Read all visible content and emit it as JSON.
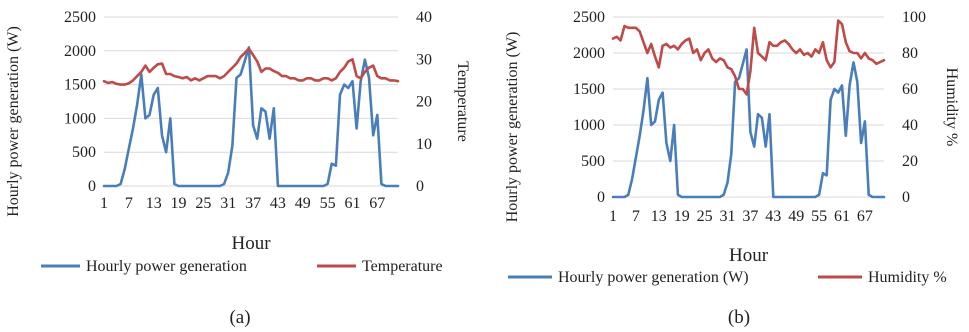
{
  "chart_data": [
    {
      "type": "line",
      "panel_label": "(a)",
      "xlabel": "Hour",
      "ylabel": "Hourly power generation  (W)",
      "y2label": "Temperature",
      "ylim": [
        0,
        2500
      ],
      "y2lim": [
        0,
        40
      ],
      "yticks": [
        "0",
        "500",
        "1000",
        "1500",
        "2000",
        "2500"
      ],
      "y2ticks": [
        "0",
        "10",
        "20",
        "30",
        "40"
      ],
      "xlim": [
        1,
        72
      ],
      "xticks": [
        "1",
        "7",
        "13",
        "19",
        "25",
        "31",
        "37",
        "43",
        "49",
        "55",
        "61",
        "67"
      ],
      "grid": true,
      "legend_position": "bottom",
      "series": [
        {
          "name": "Hourly power generation",
          "axis": "left",
          "color": "#4a7ebb",
          "x": [
            1,
            2,
            3,
            4,
            5,
            6,
            7,
            8,
            9,
            10,
            11,
            12,
            13,
            14,
            15,
            16,
            17,
            18,
            19,
            20,
            21,
            22,
            23,
            24,
            25,
            26,
            27,
            28,
            29,
            30,
            31,
            32,
            33,
            34,
            35,
            36,
            37,
            38,
            39,
            40,
            41,
            42,
            43,
            44,
            45,
            46,
            47,
            48,
            49,
            50,
            51,
            52,
            53,
            54,
            55,
            56,
            57,
            58,
            59,
            60,
            61,
            62,
            63,
            64,
            65,
            66,
            67,
            68,
            69,
            70,
            71,
            72
          ],
          "values": [
            0,
            0,
            0,
            0,
            30,
            250,
            550,
            850,
            1200,
            1650,
            1000,
            1050,
            1350,
            1450,
            750,
            500,
            1000,
            30,
            0,
            0,
            0,
            0,
            0,
            0,
            0,
            0,
            0,
            0,
            0,
            30,
            200,
            600,
            1600,
            1650,
            1850,
            2050,
            900,
            700,
            1150,
            1100,
            700,
            1150,
            0,
            0,
            0,
            0,
            0,
            0,
            0,
            0,
            0,
            0,
            0,
            0,
            30,
            330,
            300,
            1350,
            1500,
            1450,
            1550,
            850,
            1550,
            1870,
            1600,
            750,
            1050,
            30,
            0,
            0,
            0,
            0
          ]
        },
        {
          "name": "Temperature",
          "axis": "right",
          "color": "#be4b48",
          "x": [
            1,
            2,
            3,
            4,
            5,
            6,
            7,
            8,
            9,
            10,
            11,
            12,
            13,
            14,
            15,
            16,
            17,
            18,
            19,
            20,
            21,
            22,
            23,
            24,
            25,
            26,
            27,
            28,
            29,
            30,
            31,
            32,
            33,
            34,
            35,
            36,
            37,
            38,
            39,
            40,
            41,
            42,
            43,
            44,
            45,
            46,
            47,
            48,
            49,
            50,
            51,
            52,
            53,
            54,
            55,
            56,
            57,
            58,
            59,
            60,
            61,
            62,
            63,
            64,
            65,
            66,
            67,
            68,
            69,
            70,
            71,
            72
          ],
          "values": [
            24.8,
            24.4,
            24.6,
            24.2,
            24.0,
            24.0,
            24.3,
            25.0,
            26.0,
            27.0,
            28.5,
            27.0,
            28.0,
            28.8,
            29.0,
            26.5,
            26.5,
            26.0,
            25.8,
            25.5,
            25.8,
            25.0,
            25.5,
            25.0,
            25.5,
            26.0,
            26.0,
            26.0,
            25.5,
            26.0,
            27.0,
            28.0,
            29.0,
            30.5,
            31.5,
            32.5,
            31.0,
            29.5,
            27.0,
            27.8,
            27.8,
            27.2,
            26.8,
            26.0,
            26.0,
            25.5,
            25.5,
            25.0,
            25.0,
            25.5,
            25.5,
            25.0,
            25.0,
            25.5,
            25.5,
            25.0,
            25.5,
            27.0,
            28.0,
            29.5,
            30.0,
            26.0,
            25.5,
            27.0,
            28.0,
            28.5,
            26.0,
            25.5,
            25.5,
            25.0,
            25.0,
            24.8
          ]
        }
      ]
    },
    {
      "type": "line",
      "panel_label": "(b)",
      "xlabel": "Hour",
      "ylabel": "Hourly power generation  (W)",
      "y2label": "Humidity   %",
      "ylim": [
        0,
        2500
      ],
      "y2lim": [
        0,
        100
      ],
      "yticks": [
        "0",
        "500",
        "1000",
        "1500",
        "2000",
        "2500"
      ],
      "y2ticks": [
        "0",
        "20",
        "40",
        "60",
        "80",
        "100"
      ],
      "xlim": [
        1,
        72
      ],
      "xticks": [
        "1",
        "7",
        "13",
        "19",
        "25",
        "31",
        "37",
        "43",
        "49",
        "55",
        "61",
        "67"
      ],
      "grid": true,
      "legend_position": "bottom",
      "series": [
        {
          "name": "Hourly power generation (W)",
          "axis": "left",
          "color": "#4a7ebb",
          "x": [
            1,
            2,
            3,
            4,
            5,
            6,
            7,
            8,
            9,
            10,
            11,
            12,
            13,
            14,
            15,
            16,
            17,
            18,
            19,
            20,
            21,
            22,
            23,
            24,
            25,
            26,
            27,
            28,
            29,
            30,
            31,
            32,
            33,
            34,
            35,
            36,
            37,
            38,
            39,
            40,
            41,
            42,
            43,
            44,
            45,
            46,
            47,
            48,
            49,
            50,
            51,
            52,
            53,
            54,
            55,
            56,
            57,
            58,
            59,
            60,
            61,
            62,
            63,
            64,
            65,
            66,
            67,
            68,
            69,
            70,
            71,
            72
          ],
          "values": [
            0,
            0,
            0,
            0,
            30,
            250,
            550,
            850,
            1200,
            1650,
            1000,
            1050,
            1350,
            1450,
            750,
            500,
            1000,
            30,
            0,
            0,
            0,
            0,
            0,
            0,
            0,
            0,
            0,
            0,
            0,
            30,
            200,
            600,
            1600,
            1650,
            1850,
            2050,
            900,
            700,
            1150,
            1100,
            700,
            1150,
            0,
            0,
            0,
            0,
            0,
            0,
            0,
            0,
            0,
            0,
            0,
            0,
            30,
            330,
            300,
            1350,
            1500,
            1450,
            1550,
            850,
            1550,
            1870,
            1600,
            750,
            1050,
            30,
            0,
            0,
            0,
            0
          ]
        },
        {
          "name": "Humidity   %",
          "axis": "right",
          "color": "#be4b48",
          "x": [
            1,
            2,
            3,
            4,
            5,
            6,
            7,
            8,
            9,
            10,
            11,
            12,
            13,
            14,
            15,
            16,
            17,
            18,
            19,
            20,
            21,
            22,
            23,
            24,
            25,
            26,
            27,
            28,
            29,
            30,
            31,
            32,
            33,
            34,
            35,
            36,
            37,
            38,
            39,
            40,
            41,
            42,
            43,
            44,
            45,
            46,
            47,
            48,
            49,
            50,
            51,
            52,
            53,
            54,
            55,
            56,
            57,
            58,
            59,
            60,
            61,
            62,
            63,
            64,
            65,
            66,
            67,
            68,
            69,
            70,
            71,
            72
          ],
          "values": [
            88,
            89,
            87,
            95,
            94,
            94,
            94,
            92,
            86,
            80,
            85,
            78,
            72,
            84,
            85,
            83,
            84,
            82,
            85,
            87,
            88,
            80,
            82,
            76,
            80,
            82,
            77,
            75,
            77,
            76,
            72,
            71,
            67,
            60,
            60,
            57,
            70,
            94,
            80,
            78,
            76,
            86,
            84,
            84,
            86,
            87,
            85,
            82,
            80,
            82,
            79,
            80,
            78,
            82,
            80,
            86,
            76,
            72,
            75,
            98,
            96,
            86,
            81,
            80,
            80,
            77,
            80,
            77,
            76,
            74,
            75,
            76
          ]
        }
      ]
    }
  ]
}
